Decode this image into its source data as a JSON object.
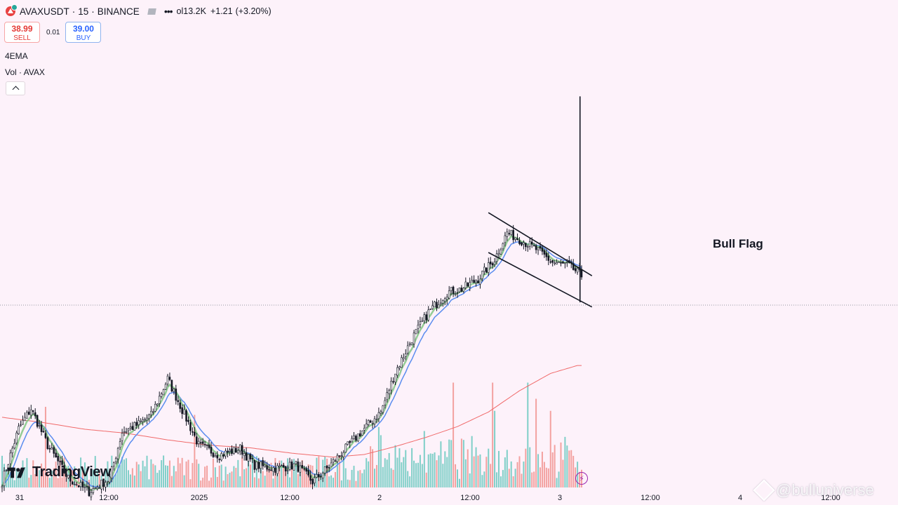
{
  "header": {
    "symbol": "AVAXUSDT",
    "interval": "15",
    "exchange": "BINANCE",
    "separator": "·",
    "volume_text": "ol13.2K",
    "change": "+1.21",
    "change_pct": "(+3.20%)"
  },
  "trade": {
    "sell_price": "38.99",
    "sell_label": "SELL",
    "spread": "0.01",
    "buy_price": "39.00",
    "buy_label": "BUY"
  },
  "indicators": {
    "ema": "4EMA",
    "volume": "Vol · AVAX"
  },
  "annotation": {
    "bull_flag": "Bull Flag"
  },
  "branding": {
    "tradingview": "TradingView",
    "watermark": "@bulluniverse"
  },
  "icons": {
    "symbol_logo": "avax-logo-icon",
    "object_tree": "square-icon",
    "more": "more-dots-icon",
    "collapse": "chevron-up-icon",
    "flash": "lightning-icon"
  },
  "colors": {
    "background": "#fdf2fa",
    "up_candle": "#26a69a",
    "down_candle": "#ef5350",
    "ema_fast": "#81c784",
    "ema_slow": "#5b8def",
    "ema_long": "#f06a6a",
    "vol_up": "#7fcfc8",
    "vol_down": "#f3a1a0"
  },
  "chart_data": {
    "type": "candlestick",
    "symbol": "AVAXUSDT",
    "interval": "15",
    "x_ticks": [
      "31",
      "12:00",
      "2025",
      "12:00",
      "2",
      "12:00",
      "3",
      "12:00",
      "4",
      "12:00"
    ],
    "keypoints": [
      {
        "i": 0,
        "close": 35.55
      },
      {
        "i": 8,
        "close": 36.35
      },
      {
        "i": 14,
        "close": 36.65
      },
      {
        "i": 22,
        "close": 36.1
      },
      {
        "i": 32,
        "close": 35.6
      },
      {
        "i": 42,
        "close": 35.4
      },
      {
        "i": 52,
        "close": 35.6
      },
      {
        "i": 58,
        "close": 36.3
      },
      {
        "i": 65,
        "close": 36.4
      },
      {
        "i": 72,
        "close": 36.55
      },
      {
        "i": 80,
        "close": 37.1
      },
      {
        "i": 86,
        "close": 36.7
      },
      {
        "i": 95,
        "close": 36.1
      },
      {
        "i": 105,
        "close": 35.95
      },
      {
        "i": 115,
        "close": 36.05
      },
      {
        "i": 122,
        "close": 35.8
      },
      {
        "i": 132,
        "close": 35.75
      },
      {
        "i": 142,
        "close": 35.8
      },
      {
        "i": 150,
        "close": 35.55
      },
      {
        "i": 157,
        "close": 35.75
      },
      {
        "i": 166,
        "close": 36.05
      },
      {
        "i": 175,
        "close": 36.35
      },
      {
        "i": 183,
        "close": 36.6
      },
      {
        "i": 190,
        "close": 37.2
      },
      {
        "i": 198,
        "close": 37.7
      },
      {
        "i": 206,
        "close": 38.1
      },
      {
        "i": 215,
        "close": 38.4
      },
      {
        "i": 222,
        "close": 38.45
      },
      {
        "i": 230,
        "close": 38.6
      },
      {
        "i": 238,
        "close": 38.9
      },
      {
        "i": 244,
        "close": 39.3
      },
      {
        "i": 250,
        "close": 39.2
      },
      {
        "i": 258,
        "close": 39.05
      },
      {
        "i": 266,
        "close": 38.85
      },
      {
        "i": 274,
        "close": 38.8
      },
      {
        "i": 280,
        "close": 38.65
      }
    ],
    "ema_long_keypoints": [
      {
        "i": 0,
        "v": 36.52
      },
      {
        "i": 20,
        "v": 36.44
      },
      {
        "i": 40,
        "v": 36.34
      },
      {
        "i": 60,
        "v": 36.28
      },
      {
        "i": 80,
        "v": 36.18
      },
      {
        "i": 100,
        "v": 36.1
      },
      {
        "i": 120,
        "v": 36.06
      },
      {
        "i": 140,
        "v": 35.98
      },
      {
        "i": 160,
        "v": 35.92
      },
      {
        "i": 175,
        "v": 35.96
      },
      {
        "i": 190,
        "v": 36.08
      },
      {
        "i": 205,
        "v": 36.22
      },
      {
        "i": 220,
        "v": 36.38
      },
      {
        "i": 235,
        "v": 36.6
      },
      {
        "i": 250,
        "v": 36.92
      },
      {
        "i": 265,
        "v": 37.18
      },
      {
        "i": 278,
        "v": 37.3
      }
    ],
    "volume_spikes": [
      {
        "i": 21,
        "v": 1.0
      },
      {
        "i": 93,
        "v": 0.9
      },
      {
        "i": 182,
        "v": 0.75
      },
      {
        "i": 204,
        "v": 0.7
      },
      {
        "i": 218,
        "v": 1.3
      },
      {
        "i": 237,
        "v": 1.3
      },
      {
        "i": 238,
        "v": 0.95
      },
      {
        "i": 254,
        "v": 1.3
      },
      {
        "i": 258,
        "v": 1.1
      },
      {
        "i": 265,
        "v": 0.95
      }
    ],
    "pattern": {
      "name": "Bull Flag",
      "flagpole_top": 41.35,
      "upper_line": [
        {
          "i": 237,
          "p": 39.6
        },
        {
          "i": 285,
          "p": 38.65
        }
      ],
      "lower_line": [
        {
          "i": 237,
          "p": 39.0
        },
        {
          "i": 285,
          "p": 38.18
        }
      ]
    },
    "ylim": [
      35.2,
      42.8
    ],
    "grid": false,
    "legend": "none"
  }
}
